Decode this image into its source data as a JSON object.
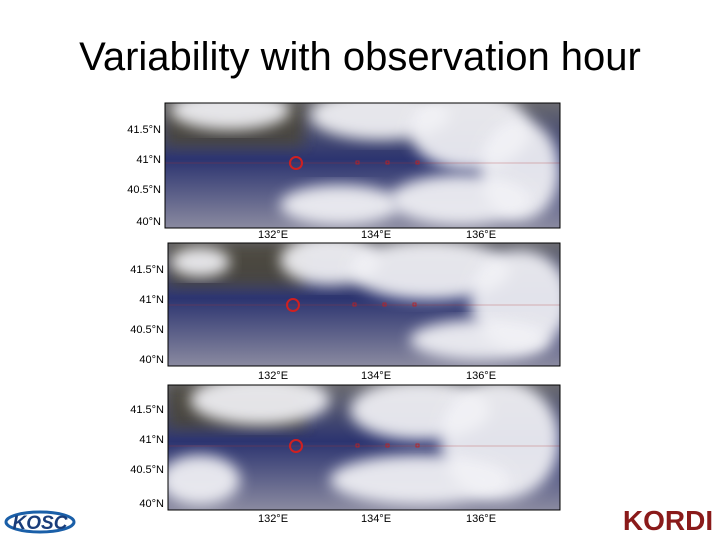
{
  "header": {
    "title": "Variability with observation hour"
  },
  "panels": [
    {
      "lat_labels": [
        "41.5°N",
        "41°N",
        "40.5°N",
        "40°N"
      ],
      "lon_labels": [
        "132°E",
        "134°E",
        "136°E"
      ]
    },
    {
      "lat_labels": [
        "41.5°N",
        "41°N",
        "40.5°N",
        "40°N"
      ],
      "lon_labels": [
        "132°E",
        "134°E",
        "136°E"
      ]
    },
    {
      "lat_labels": [
        "41.5°N",
        "41°N",
        "40.5°N",
        "40°N"
      ],
      "lon_labels": [
        "132°E",
        "134°E",
        "136°E"
      ]
    }
  ],
  "logos": {
    "left": "KOSC",
    "right": "KORDI"
  }
}
